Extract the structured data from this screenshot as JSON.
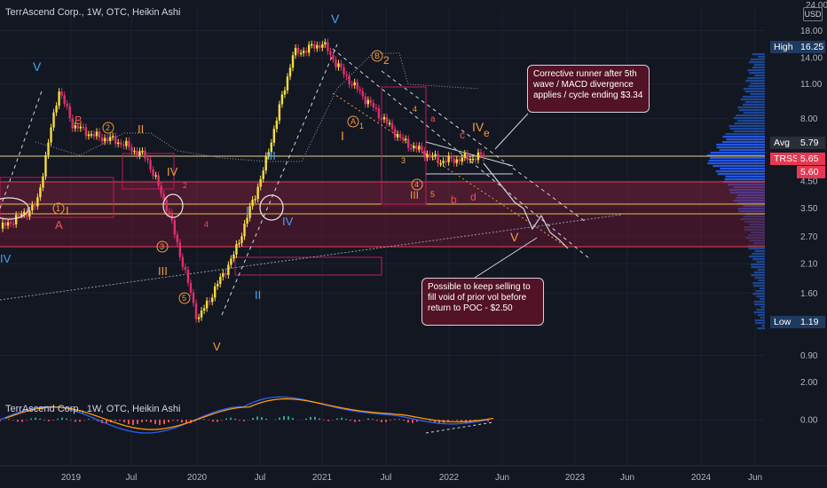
{
  "header": {
    "title": "TerrAscend Corp., 1W, OTC, Heikin Ashi",
    "currency_button": "USD"
  },
  "price_axis": {
    "ticks": [
      "18.00",
      "14.00",
      "11.00",
      "8.00",
      "4.50",
      "3.50",
      "2.70",
      "2.10",
      "1.60",
      "0.90"
    ],
    "top_partial": "24.00"
  },
  "time_axis": [
    "2019",
    "Jul",
    "2020",
    "Jul",
    "2021",
    "Jul",
    "2022",
    "Jun",
    "2023",
    "Jun",
    "2024",
    "Jun"
  ],
  "macd_axis": [
    "2.00",
    "0.00"
  ],
  "tags": {
    "high_label": "High",
    "high_value": "16.25",
    "avg_label": "Avg",
    "avg_value": "5.79",
    "ticker": "TRSSF",
    "last_value": "5.65",
    "prev_value": "5.60",
    "low_label": "Low",
    "low_value": "1.19"
  },
  "callouts": {
    "top": "Corrective runner after 5th wave / MACD divergence applies / cycle ending $3.34",
    "bottom": "Possible to keep selling to fill void of prior vol before return to POC - $2.50"
  },
  "waves": {
    "blue_V_left": "V",
    "blue_V_top": "V",
    "blue_IV_left": "IV",
    "blue_I": "I",
    "blue_II": "II",
    "blue_III": "III",
    "blue_IV": "IV",
    "red_B": "B",
    "red_A": "A",
    "red_II": "II",
    "red_III": "III",
    "red_IV": "IV",
    "red_I": "I",
    "orange_V_bottom": "V",
    "orange_IV_right": "IV",
    "orange_e": "e",
    "orange_V_right": "V",
    "orange_I": "I",
    "orange_III": "III",
    "orange_B": "B",
    "orange_2": "2",
    "orange_A": "A",
    "red_c": "c",
    "red_b": "b",
    "red_d": "d",
    "red_a": "a",
    "circ_1": "1",
    "circ_2": "2",
    "circ_3": "3",
    "circ_4": "4",
    "circ_5": "5",
    "small_2": "2",
    "small_4": "4",
    "small_1": "1",
    "small_3": "3",
    "small_5": "5",
    "small_4b": "4"
  },
  "chart_data": {
    "type": "candlestick-heikin-ashi",
    "title": "TerrAscend Corp., 1W, OTC, Heikin Ashi",
    "price_scale": "log",
    "ylim": [
      0.8,
      22
    ],
    "x_ticks": [
      "2019",
      "Jul",
      "2020",
      "Jul",
      "2021",
      "Jul",
      "2022",
      "Jun",
      "2023",
      "Jun",
      "2024",
      "Jun"
    ],
    "y_ticks": [
      18,
      14,
      11,
      8,
      4.5,
      3.5,
      2.7,
      2.1,
      1.6,
      0.9
    ],
    "price_path": [
      {
        "x": 0.0,
        "y": 2.9
      },
      {
        "x": 0.05,
        "y": 3.6
      },
      {
        "x": 0.08,
        "y": 10.5
      },
      {
        "x": 0.1,
        "y": 7.5
      },
      {
        "x": 0.13,
        "y": 6.8
      },
      {
        "x": 0.16,
        "y": 6.5
      },
      {
        "x": 0.2,
        "y": 5.6
      },
      {
        "x": 0.23,
        "y": 3.4
      },
      {
        "x": 0.27,
        "y": 1.25
      },
      {
        "x": 0.32,
        "y": 2.3
      },
      {
        "x": 0.36,
        "y": 5.0
      },
      {
        "x": 0.4,
        "y": 14.5
      },
      {
        "x": 0.44,
        "y": 16.0
      },
      {
        "x": 0.47,
        "y": 12.0
      },
      {
        "x": 0.5,
        "y": 9.5
      },
      {
        "x": 0.55,
        "y": 6.5
      },
      {
        "x": 0.6,
        "y": 5.4
      },
      {
        "x": 0.66,
        "y": 5.65
      }
    ],
    "levels": {
      "high": 16.25,
      "avg": 5.79,
      "last": 5.65,
      "prev": 5.6,
      "low": 1.19
    },
    "annotated_targets": {
      "cycle_end": 3.34,
      "poc": 2.5
    },
    "macd": {
      "ylim": [
        -1.5,
        2.5
      ],
      "y_ticks": [
        2.0,
        0.0
      ]
    }
  }
}
